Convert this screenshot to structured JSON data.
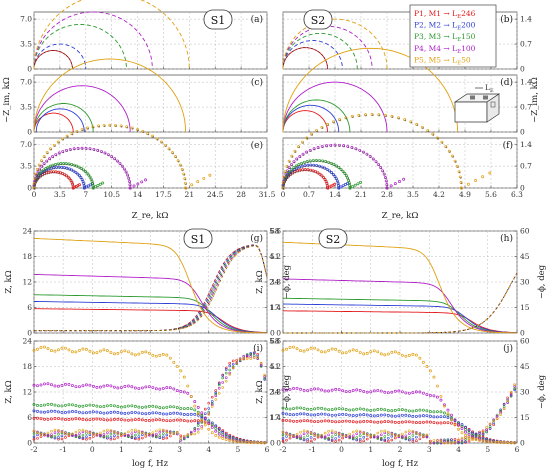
{
  "colors": {
    "series": [
      "#e3191c",
      "#2c3fd6",
      "#2b9a2e",
      "#b020c8",
      "#e0a010"
    ],
    "black": "#333333"
  },
  "labels": {
    "S1": "S1",
    "S2": "S2",
    "zim": "−Z_im, kΩ",
    "zre": "Z_re, kΩ",
    "z": "Z, kΩ",
    "phi": "−ϕ, deg",
    "logf": "log f, Hz",
    "L": "L",
    "E": "E"
  },
  "legend": [
    {
      "text": "P1, M1 → L",
      "sub": "E",
      "num": "246"
    },
    {
      "text": "P2, M2 → L",
      "sub": "E",
      "num": "200"
    },
    {
      "text": "P3, M3 → L",
      "sub": "E",
      "num": "150"
    },
    {
      "text": "P4, M4 → L",
      "sub": "E",
      "num": "100"
    },
    {
      "text": "P5, M5 → L",
      "sub": "E",
      "num": "50"
    }
  ],
  "chart_data": [
    {
      "panel": "a",
      "type": "line",
      "style": "solid+dashed semicircles (Nyquist)",
      "x_ticks": [
        0,
        3.5,
        7.0,
        10.5,
        14.0,
        17.5,
        21.0,
        24.5,
        28.0,
        31.5
      ],
      "y_ticks": [
        0,
        3.5,
        7.0
      ],
      "xlim": [
        0,
        31.5
      ],
      "ylim": [
        0,
        8
      ],
      "series": [
        {
          "dia": [
            0,
            5.2
          ],
          "style": "solid"
        },
        {
          "dia": [
            0,
            7.0
          ],
          "style": "dashed"
        },
        {
          "dia": [
            0,
            12.5
          ],
          "style": "dashed"
        },
        {
          "dia": [
            0,
            16.0
          ],
          "style": "dashed"
        },
        {
          "dia": [
            0,
            21.0
          ],
          "style": "dashed"
        }
      ]
    },
    {
      "panel": "b",
      "type": "line",
      "style": "solid+dashed semicircles (Nyquist)",
      "x_ticks": [
        0,
        0.7,
        1.4,
        2.1,
        2.8,
        3.5,
        4.2,
        4.9,
        5.6,
        6.3
      ],
      "y_ticks": [
        0,
        0.7,
        1.4
      ],
      "xlim": [
        0,
        6.3
      ],
      "ylim": [
        0,
        1.6
      ],
      "series": [
        {
          "dia": [
            0,
            1.2
          ],
          "style": "solid"
        },
        {
          "dia": [
            0,
            1.6
          ],
          "style": "dashed"
        },
        {
          "dia": [
            0,
            2.0
          ],
          "style": "dashed"
        },
        {
          "dia": [
            0,
            2.4
          ],
          "style": "dashed"
        },
        {
          "dia": [
            0,
            2.8
          ],
          "style": "dashed"
        }
      ]
    },
    {
      "panel": "c",
      "type": "line",
      "x_ticks": [
        0,
        3.5,
        7.0,
        10.5,
        14.0,
        17.5,
        21.0,
        24.5,
        28.0,
        31.5
      ],
      "y_ticks": [
        0,
        3.5,
        7.0
      ],
      "xlim": [
        0,
        31.5
      ],
      "ylim": [
        0,
        8
      ],
      "series": [
        {
          "dia": [
            0,
            5.3
          ]
        },
        {
          "dia": [
            0.3,
            6.8
          ]
        },
        {
          "dia": [
            0,
            8.0
          ]
        },
        {
          "dia": [
            0,
            13.0
          ]
        },
        {
          "dia": [
            0,
            20.5
          ]
        }
      ]
    },
    {
      "panel": "d",
      "type": "line",
      "x_ticks": [
        0,
        0.7,
        1.4,
        2.1,
        2.8,
        3.5,
        4.2,
        4.9,
        5.6,
        6.3
      ],
      "y_ticks": [
        0,
        0.7,
        1.4
      ],
      "xlim": [
        0,
        6.3
      ],
      "ylim": [
        0,
        1.6
      ],
      "series": [
        {
          "dia": [
            0,
            1.2
          ]
        },
        {
          "dia": [
            0,
            1.5
          ]
        },
        {
          "dia": [
            0,
            1.8
          ]
        },
        {
          "dia": [
            0,
            2.8
          ]
        },
        {
          "dia": [
            0,
            4.7
          ]
        }
      ]
    },
    {
      "panel": "e",
      "type": "scatter",
      "x_ticks": [
        0,
        3.5,
        7.0,
        10.5,
        14.0,
        17.5,
        21.0,
        24.5,
        28.0,
        31.5
      ],
      "y_ticks": [
        0,
        3.5,
        7.0
      ],
      "xlim": [
        0,
        31.5
      ],
      "ylim": [
        0,
        8
      ],
      "series": [
        {
          "dia": [
            0,
            5.3
          ]
        },
        {
          "dia": [
            0,
            6.8
          ]
        },
        {
          "dia": [
            0,
            8.0
          ]
        },
        {
          "dia": [
            0,
            13.0
          ]
        },
        {
          "dia": [
            0,
            20.5
          ]
        }
      ]
    },
    {
      "panel": "f",
      "type": "scatter",
      "x_ticks": [
        0,
        0.7,
        1.4,
        2.1,
        2.8,
        3.5,
        4.2,
        4.9,
        5.6,
        6.3
      ],
      "y_ticks": [
        0,
        0.7,
        1.4
      ],
      "xlim": [
        0,
        6.3
      ],
      "ylim": [
        0,
        1.6
      ],
      "series": [
        {
          "dia": [
            0,
            1.2
          ]
        },
        {
          "dia": [
            0,
            1.5
          ]
        },
        {
          "dia": [
            0,
            1.8
          ]
        },
        {
          "dia": [
            0,
            2.8
          ]
        },
        {
          "dia": [
            0,
            4.8
          ]
        }
      ]
    },
    {
      "panel": "g",
      "type": "line",
      "x_ticks": [
        -2,
        -1,
        0,
        1,
        2,
        3,
        4,
        5,
        6
      ],
      "y_ticks": [
        0,
        6,
        12,
        18,
        24
      ],
      "y2_ticks": [
        0,
        17,
        34,
        51,
        68
      ],
      "xlim": [
        -2,
        6
      ],
      "ylim": [
        0,
        24
      ],
      "y2lim": [
        0,
        68
      ],
      "z_series": [
        5.4,
        7.0,
        8.5,
        13.0,
        21.0
      ],
      "phi_peak": 58
    },
    {
      "panel": "h",
      "type": "line",
      "x_ticks": [
        -2,
        -1,
        0,
        1,
        2,
        3,
        4,
        5,
        6
      ],
      "y_ticks": [
        0,
        1.4,
        2.8,
        4.2,
        5.6
      ],
      "y2_ticks": [
        0,
        15,
        30,
        45,
        60
      ],
      "xlim": [
        -2,
        6
      ],
      "ylim": [
        0,
        5.6
      ],
      "y2lim": [
        0,
        60
      ],
      "z_series": [
        1.15,
        1.5,
        1.8,
        2.8,
        4.7
      ],
      "phi_peak": 58
    },
    {
      "panel": "i",
      "type": "scatter",
      "x_ticks": [
        -2,
        -1,
        0,
        1,
        2,
        3,
        4,
        5,
        6
      ],
      "y_ticks": [
        0,
        6,
        12,
        18,
        24
      ],
      "y2_ticks": [
        0,
        17,
        34,
        51,
        68
      ],
      "xlim": [
        -2,
        6
      ],
      "ylim": [
        0,
        24
      ],
      "y2lim": [
        0,
        68
      ],
      "z_series": [
        5.4,
        7.0,
        8.5,
        13.0,
        21.0
      ],
      "phi_peak": 58
    },
    {
      "panel": "j",
      "type": "scatter",
      "x_ticks": [
        -2,
        -1,
        0,
        1,
        2,
        3,
        4,
        5,
        6
      ],
      "y_ticks": [
        0,
        1.4,
        2.8,
        4.2,
        5.6
      ],
      "y2_ticks": [
        0,
        15,
        30,
        45,
        60
      ],
      "xlim": [
        -2,
        6
      ],
      "ylim": [
        0,
        5.6
      ],
      "y2lim": [
        0,
        60
      ],
      "z_series": [
        1.15,
        1.5,
        1.8,
        2.8,
        4.9
      ],
      "phi_peak": 58
    }
  ]
}
